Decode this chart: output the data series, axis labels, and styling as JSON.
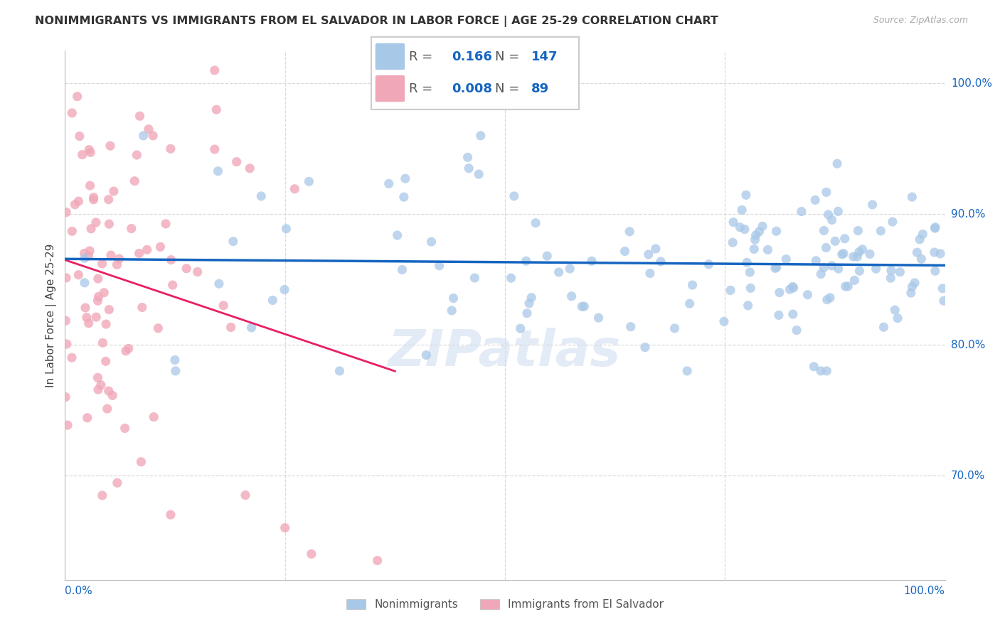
{
  "title": "NONIMMIGRANTS VS IMMIGRANTS FROM EL SALVADOR IN LABOR FORCE | AGE 25-29 CORRELATION CHART",
  "source": "Source: ZipAtlas.com",
  "ylabel": "In Labor Force | Age 25-29",
  "y_tick_vals": [
    0.7,
    0.8,
    0.9,
    1.0
  ],
  "y_tick_labels": [
    "70.0%",
    "80.0%",
    "90.0%",
    "100.0%"
  ],
  "x_tick_vals": [
    0.0,
    0.25,
    0.5,
    0.75,
    1.0
  ],
  "legend_label1": "Nonimmigrants",
  "legend_label2": "Immigrants from El Salvador",
  "R_blue": 0.166,
  "N_blue": 147,
  "R_pink": 0.008,
  "N_pink": 89,
  "blue_scatter_color": "#a8c8e8",
  "pink_scatter_color": "#f0a8b8",
  "blue_line_color": "#1565c0",
  "pink_line_color": "#e91e63",
  "accent_color": "#1565c0",
  "background_color": "#ffffff",
  "grid_color": "#d8d8d8",
  "watermark_color": "#ccdcf0",
  "xlim": [
    0.0,
    1.0
  ],
  "ylim": [
    0.62,
    1.025
  ],
  "title_fontsize": 11.5,
  "axis_fontsize": 11,
  "legend_fontsize": 13
}
